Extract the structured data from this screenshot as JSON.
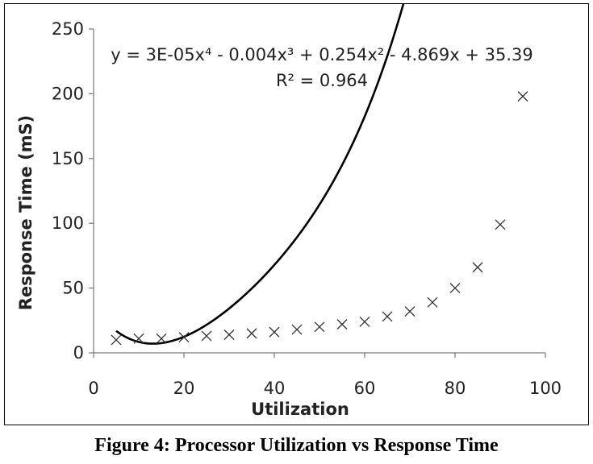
{
  "caption": "Figure 4: Processor Utilization vs Response Time",
  "chart_data": {
    "type": "scatter",
    "xlabel": "Utilization",
    "ylabel": "Response Time (mS)",
    "xlim": [
      0,
      100
    ],
    "ylim": [
      0,
      250
    ],
    "xticks": [
      "0",
      "20",
      "40",
      "60",
      "80",
      "100"
    ],
    "yticks": [
      "0",
      "50",
      "100",
      "150",
      "200",
      "250"
    ],
    "grid": false,
    "legend": "none",
    "marker": "x",
    "series": [
      {
        "x": [
          5,
          10,
          15,
          20,
          25,
          30,
          35,
          40,
          45,
          50,
          55,
          60,
          65,
          70,
          75,
          80,
          85,
          90,
          95
        ],
        "y": [
          10,
          11,
          11,
          12,
          13,
          14,
          15,
          16,
          18,
          20,
          22,
          24,
          28,
          32,
          39,
          50,
          66,
          99,
          198
        ]
      }
    ],
    "trendline": {
      "type": "polynomial",
      "order": 4,
      "x_range": [
        5,
        95
      ],
      "equation": "y = 3E-05x⁴ - 0.004x³ + 0.254x² - 4.869x + 35.39",
      "r_squared": "R² = 0.964"
    }
  }
}
